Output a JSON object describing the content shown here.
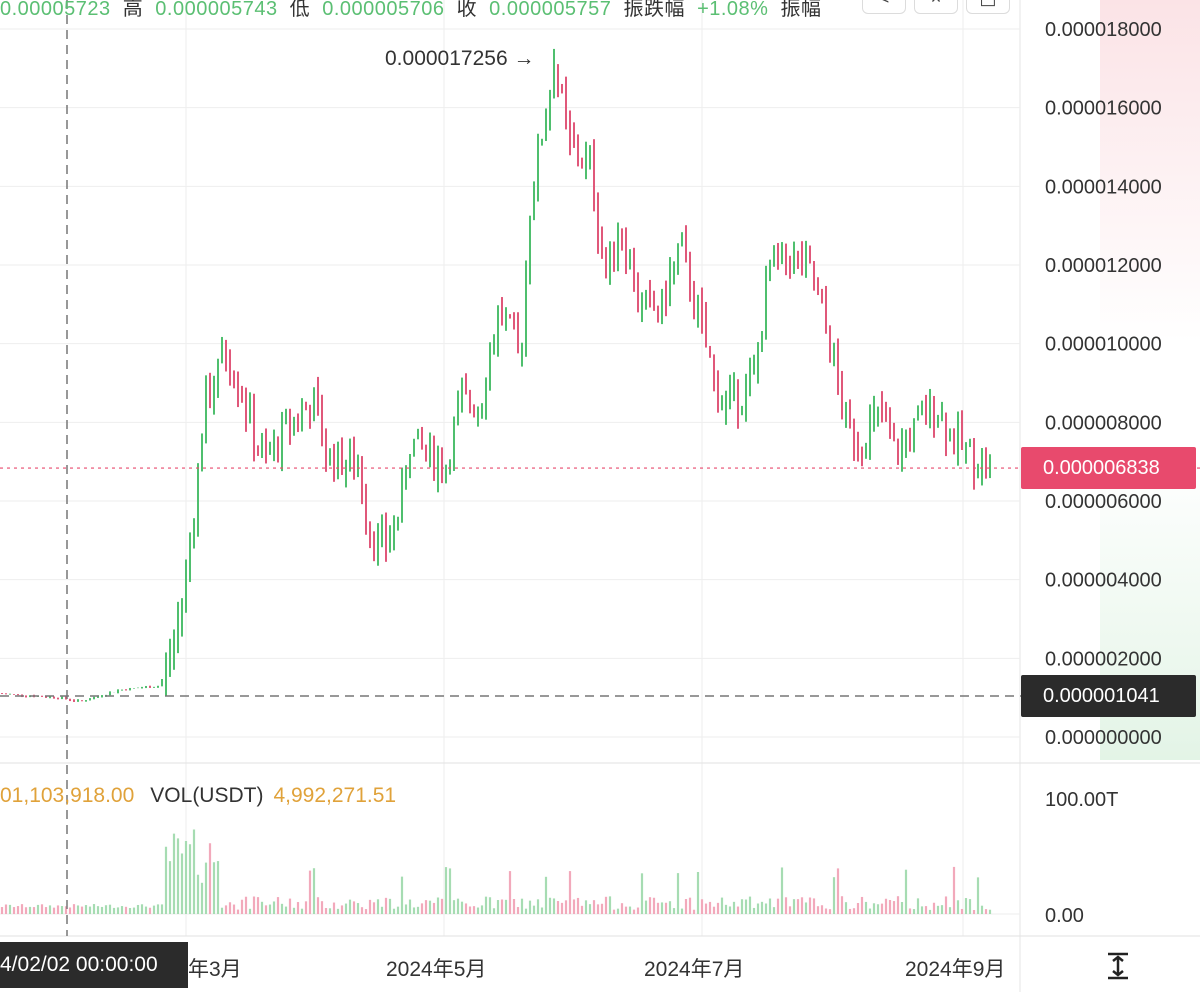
{
  "header": {
    "items": [
      "0.00005723",
      "高",
      "0.000005743",
      "低",
      "0.000005706",
      "收",
      "0.000005757",
      "振跌幅",
      "+1.08%",
      "振幅"
    ],
    "buttons": [
      "<",
      "×",
      "⬒"
    ]
  },
  "price_axis": {
    "labels": [
      "0.000018000",
      "0.000016000",
      "0.000014000",
      "0.000012000",
      "0.000010000",
      "0.000008000",
      "0.000006000",
      "0.000004000",
      "0.000002000",
      "0.000000000"
    ],
    "current_price": "0.000006838",
    "crosshair_price": "0.000001041",
    "peak_annotation": "0.000017256 →"
  },
  "volume_pane": {
    "left_value": "01,103,918.00",
    "label": "VOL(USDT)",
    "value": "4,992,271.51",
    "axis_labels": [
      "100.00T",
      "0.00"
    ]
  },
  "time_axis": {
    "crosshair_date": "4/02/02 00:00:00",
    "labels": [
      "年3月",
      "2024年5月",
      "2024年7月",
      "2024年9月"
    ]
  },
  "colors": {
    "up": "#4fbf6e",
    "down": "#e0587a",
    "current_price_tag": "#e84a6d",
    "crosshair_tag": "#2b2b2b",
    "grid": "#eeeeee"
  },
  "icons": {
    "fit_screen": "vertical-fit-icon"
  },
  "chart_data": {
    "type": "candlestick",
    "y_range": [
      0,
      1.8e-05
    ],
    "current_price": 6.838e-06,
    "crosshair_price": 1.041e-06,
    "peak": 1.7256e-05,
    "price_anchors": [
      [
        0,
        1.1e-06
      ],
      [
        60,
        1e-06
      ],
      [
        80,
        9e-07
      ],
      [
        120,
        1.2e-06
      ],
      [
        160,
        1.3e-06
      ],
      [
        175,
        2.5e-06
      ],
      [
        185,
        4e-06
      ],
      [
        195,
        6e-06
      ],
      [
        205,
        8.5e-06
      ],
      [
        215,
        9e-06
      ],
      [
        225,
        9.8e-06
      ],
      [
        240,
        9e-06
      ],
      [
        255,
        7.5e-06
      ],
      [
        265,
        7e-06
      ],
      [
        290,
        8e-06
      ],
      [
        315,
        8.5e-06
      ],
      [
        325,
        7.2e-06
      ],
      [
        345,
        7e-06
      ],
      [
        360,
        6.8e-06
      ],
      [
        370,
        5.2e-06
      ],
      [
        385,
        4.8e-06
      ],
      [
        400,
        5.8e-06
      ],
      [
        410,
        7.5e-06
      ],
      [
        430,
        7.2e-06
      ],
      [
        445,
        6.8e-06
      ],
      [
        460,
        8.5e-06
      ],
      [
        480,
        8.5e-06
      ],
      [
        500,
        1.1e-05
      ],
      [
        520,
        9.5e-06
      ],
      [
        530,
        1.35e-05
      ],
      [
        545,
        1.58e-05
      ],
      [
        555,
        1.7e-05
      ],
      [
        570,
        1.5e-05
      ],
      [
        590,
        1.45e-05
      ],
      [
        605,
        1.18e-05
      ],
      [
        620,
        1.3e-05
      ],
      [
        640,
        1.1e-05
      ],
      [
        660,
        1.08e-05
      ],
      [
        680,
        1.25e-05
      ],
      [
        700,
        1.05e-05
      ],
      [
        720,
        8.5e-06
      ],
      [
        740,
        8.7e-06
      ],
      [
        755,
        9.2e-06
      ],
      [
        770,
        1.2e-05
      ],
      [
        790,
        1.22e-05
      ],
      [
        810,
        1.18e-05
      ],
      [
        830,
        1e-05
      ],
      [
        845,
        8e-06
      ],
      [
        860,
        7.5e-06
      ],
      [
        880,
        8.2e-06
      ],
      [
        895,
        7.2e-06
      ],
      [
        915,
        7.8e-06
      ],
      [
        935,
        8.5e-06
      ],
      [
        950,
        7.7e-06
      ],
      [
        970,
        7.2e-06
      ],
      [
        990,
        6.8e-06
      ]
    ]
  }
}
